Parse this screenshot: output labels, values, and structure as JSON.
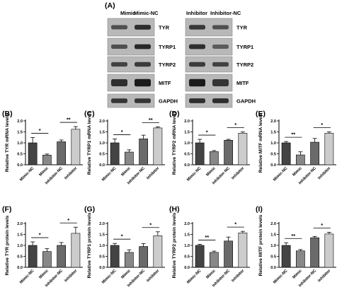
{
  "blot": {
    "panel_letter": "(A)",
    "left_columns": [
      "Mimic",
      "Mimic-NC"
    ],
    "right_columns": [
      "Inhibitor",
      "Inhibitor-NC"
    ],
    "rows": [
      "TYR",
      "TYRP1",
      "TYRP2",
      "MITF",
      "GAPDH"
    ]
  },
  "chart_data": [
    {
      "id": "B",
      "panel_letter": "(B)",
      "type": "bar",
      "categories": [
        "Mimic-NC",
        "Mimic",
        "Inhibitor-NC",
        "Inhibitor"
      ],
      "values": [
        1.0,
        0.44,
        1.05,
        1.62
      ],
      "errors": [
        0.24,
        0.05,
        0.08,
        0.12
      ],
      "colors": [
        "#444444",
        "#888888",
        "#6a6a6a",
        "#cccccc"
      ],
      "ylabel": "Relative TYR mRNA levels",
      "ylim": [
        0,
        2
      ],
      "yticks": [
        0.0,
        0.5,
        1.0,
        1.5,
        2.0
      ],
      "significance": [
        {
          "pair": [
            0,
            1
          ],
          "label": "*"
        },
        {
          "pair": [
            2,
            3
          ],
          "label": "**"
        }
      ]
    },
    {
      "id": "C",
      "panel_letter": "(C)",
      "type": "bar",
      "categories": [
        "Mimic-NC",
        "Mimic",
        "Inhibitor-NC",
        "Inhibitor"
      ],
      "values": [
        1.0,
        0.58,
        1.18,
        1.68
      ],
      "errors": [
        0.18,
        0.1,
        0.17,
        0.05
      ],
      "colors": [
        "#444444",
        "#888888",
        "#6a6a6a",
        "#cccccc"
      ],
      "ylabel": "Relative TYRP1 mRNA levels",
      "ylim": [
        0,
        2
      ],
      "yticks": [
        0.0,
        0.5,
        1.0,
        1.5,
        2.0
      ],
      "significance": [
        {
          "pair": [
            0,
            1
          ],
          "label": "*"
        },
        {
          "pair": [
            2,
            3
          ],
          "label": "**"
        }
      ]
    },
    {
      "id": "D",
      "panel_letter": "(D)",
      "type": "bar",
      "categories": [
        "Mimic-NC",
        "Mimic",
        "Inhibitor-NC",
        "Inhibitor"
      ],
      "values": [
        1.0,
        0.6,
        1.12,
        1.44
      ],
      "errors": [
        0.16,
        0.05,
        0.04,
        0.06
      ],
      "colors": [
        "#444444",
        "#888888",
        "#6a6a6a",
        "#cccccc"
      ],
      "ylabel": "Relative TYRP2 mRNA levels",
      "ylim": [
        0,
        2
      ],
      "yticks": [
        0.0,
        0.5,
        1.0,
        1.5,
        2.0
      ],
      "significance": [
        {
          "pair": [
            0,
            1
          ],
          "label": "*"
        },
        {
          "pair": [
            2,
            3
          ],
          "label": "*"
        }
      ]
    },
    {
      "id": "E",
      "panel_letter": "(E)",
      "type": "bar",
      "categories": [
        "Mimic-NC",
        "Mimic",
        "Inhibitor-NC",
        "Inhibitor"
      ],
      "values": [
        1.0,
        0.45,
        1.03,
        1.44
      ],
      "errors": [
        0.06,
        0.14,
        0.17,
        0.06
      ],
      "colors": [
        "#444444",
        "#888888",
        "#6a6a6a",
        "#cccccc"
      ],
      "ylabel": "Relative MITF mRNA levels",
      "ylim": [
        0,
        2
      ],
      "yticks": [
        0.0,
        0.5,
        1.0,
        1.5,
        2.0
      ],
      "significance": [
        {
          "pair": [
            0,
            1
          ],
          "label": "**"
        },
        {
          "pair": [
            2,
            3
          ],
          "label": "*"
        }
      ]
    },
    {
      "id": "F",
      "panel_letter": "(F)",
      "type": "bar",
      "categories": [
        "Mimic-NC",
        "Mimic",
        "Inhibitor-NC",
        "Inhibitor"
      ],
      "values": [
        1.0,
        0.72,
        1.0,
        1.55
      ],
      "errors": [
        0.16,
        0.13,
        0.13,
        0.28
      ],
      "colors": [
        "#444444",
        "#888888",
        "#6a6a6a",
        "#cccccc"
      ],
      "ylabel": "Relative TYR protein levels",
      "ylim": [
        0,
        2
      ],
      "yticks": [
        0.0,
        0.5,
        1.0,
        1.5,
        2.0
      ],
      "significance": [
        {
          "pair": [
            0,
            1
          ],
          "label": "*"
        },
        {
          "pair": [
            2,
            3
          ],
          "label": "*"
        }
      ]
    },
    {
      "id": "G",
      "panel_letter": "(G)",
      "type": "bar",
      "categories": [
        "Mimic-NC",
        "Mimic",
        "Inhibitor-NC",
        "Inhibitor"
      ],
      "values": [
        1.0,
        0.68,
        0.95,
        1.44
      ],
      "errors": [
        0.09,
        0.12,
        0.13,
        0.18
      ],
      "colors": [
        "#444444",
        "#888888",
        "#6a6a6a",
        "#cccccc"
      ],
      "ylabel": "Relative TYRP1 protein levels",
      "ylim": [
        0,
        2
      ],
      "yticks": [
        0.0,
        0.5,
        1.0,
        1.5,
        2.0
      ],
      "significance": [
        {
          "pair": [
            0,
            1
          ],
          "label": "*"
        },
        {
          "pair": [
            2,
            3
          ],
          "label": "*"
        }
      ]
    },
    {
      "id": "H",
      "panel_letter": "(H)",
      "type": "bar",
      "categories": [
        "Mimic-NC",
        "Mimic",
        "Inhibitor-NC",
        "Inhibitor"
      ],
      "values": [
        1.0,
        0.68,
        1.2,
        1.57
      ],
      "errors": [
        0.05,
        0.06,
        0.18,
        0.07
      ],
      "colors": [
        "#444444",
        "#888888",
        "#6a6a6a",
        "#cccccc"
      ],
      "ylabel": "Relative TYRP2 protein levels",
      "ylim": [
        0,
        2
      ],
      "yticks": [
        0.0,
        0.5,
        1.0,
        1.5,
        2.0
      ],
      "significance": [
        {
          "pair": [
            0,
            1
          ],
          "label": "**"
        },
        {
          "pair": [
            2,
            3
          ],
          "label": "*"
        }
      ]
    },
    {
      "id": "I",
      "panel_letter": "(I)",
      "type": "bar",
      "categories": [
        "Mimic-NC",
        "Mimic",
        "Inhibitor-NC",
        "Inhibitor"
      ],
      "values": [
        1.0,
        0.75,
        1.35,
        1.52
      ],
      "errors": [
        0.12,
        0.06,
        0.06,
        0.08
      ],
      "colors": [
        "#444444",
        "#888888",
        "#6a6a6a",
        "#cccccc"
      ],
      "ylabel": "Relative MITF protein levels",
      "ylim": [
        0,
        2
      ],
      "yticks": [
        0.0,
        0.5,
        1.0,
        1.5,
        2.0
      ],
      "significance": [
        {
          "pair": [
            0,
            1
          ],
          "label": "**"
        },
        {
          "pair": [
            2,
            3
          ],
          "label": "*"
        }
      ]
    }
  ]
}
